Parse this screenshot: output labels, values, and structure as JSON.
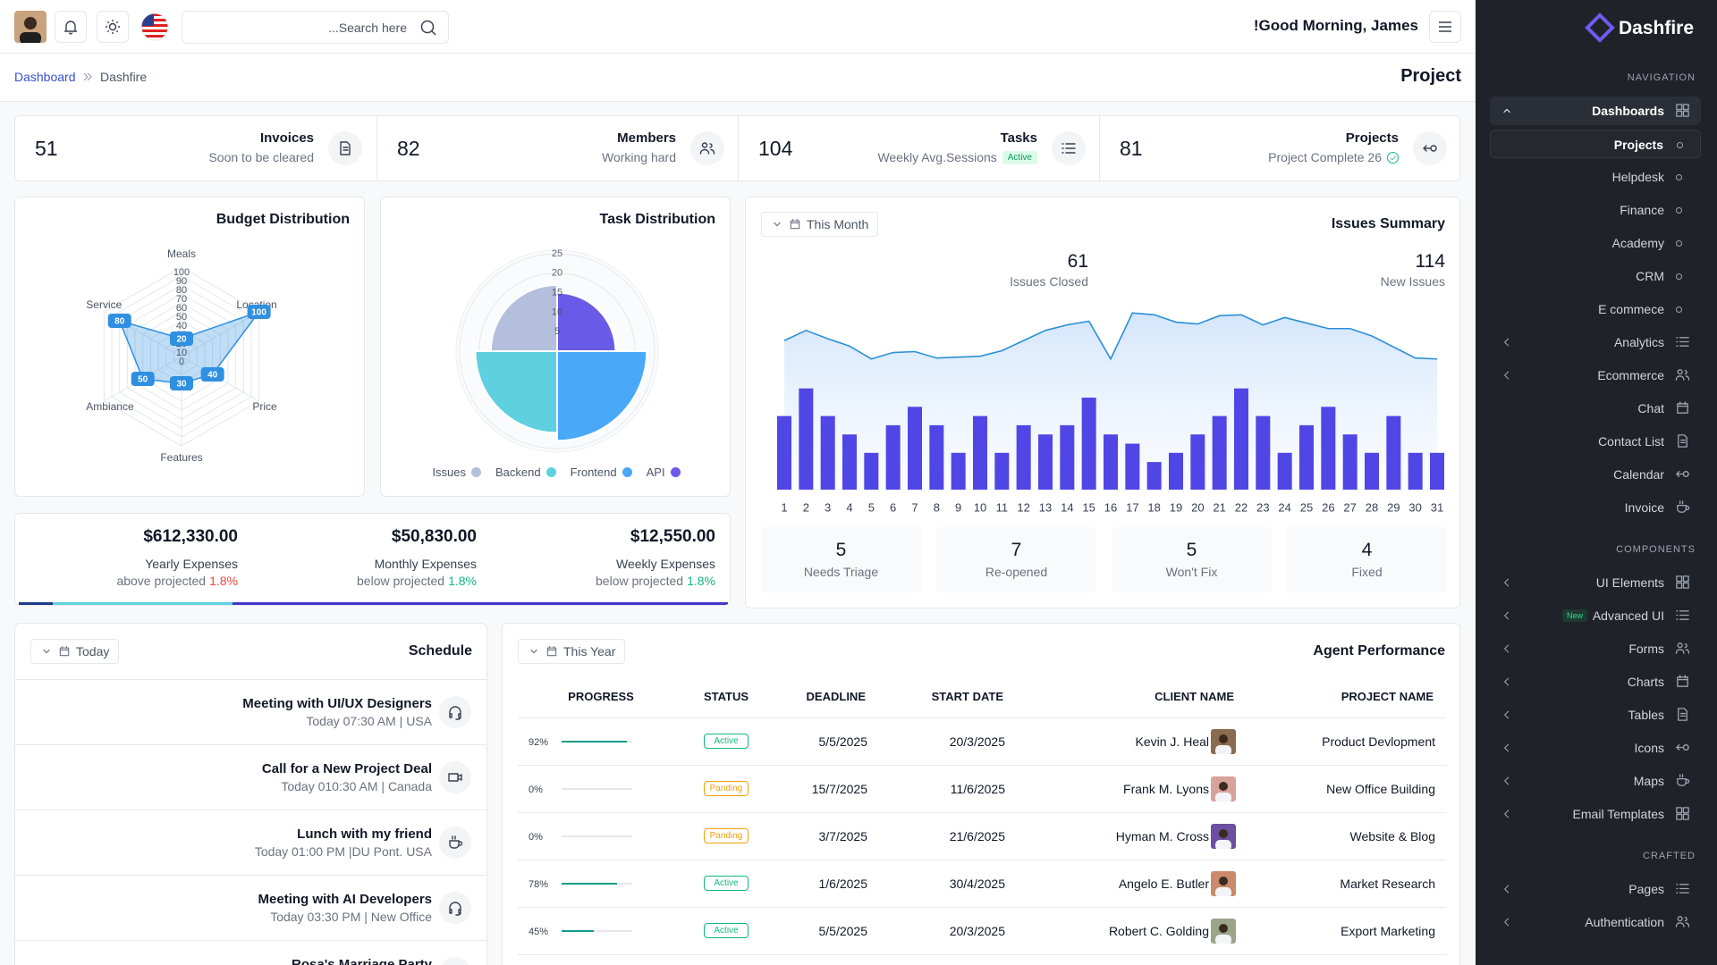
{
  "header": {
    "search_placeholder": "...Search here",
    "greeting": "!Good Morning, James"
  },
  "breadcrumb": {
    "items": [
      "Dashboard",
      "Dashfire"
    ],
    "page_title": "Project"
  },
  "stats": [
    {
      "value": 51,
      "label": "Invoices",
      "sub": "Soon to be cleared"
    },
    {
      "value": 82,
      "label": "Members",
      "sub": "Working hard"
    },
    {
      "value": 104,
      "label": "Tasks",
      "sub": "Weekly Avg.Sessions",
      "badge": "Active"
    },
    {
      "value": 81,
      "label": "Projects",
      "sub": "Project Complete 26"
    }
  ],
  "chart_data": [
    {
      "type": "radar",
      "title": "Budget Distribution",
      "categories": [
        "Meals",
        "Location",
        "Price",
        "Features",
        "Ambiance",
        "Service"
      ],
      "values": [
        20,
        100,
        40,
        30,
        50,
        80
      ],
      "ylim": [
        0,
        100
      ],
      "yticks": [
        0,
        10,
        20,
        30,
        40,
        50,
        60,
        70,
        80,
        90,
        100
      ],
      "color": "#2f8fe0"
    },
    {
      "type": "polar",
      "title": "Task Distribution",
      "categories": [
        "Issues",
        "Backend",
        "Frontend",
        "API"
      ],
      "values": [
        17,
        21,
        23,
        15
      ],
      "colors": [
        "#b3bfdc",
        "#5fd0e0",
        "#4aa8f8",
        "#6a5ae8"
      ],
      "ylim": [
        0,
        25
      ],
      "yticks": [
        5,
        10,
        15,
        20,
        25
      ]
    },
    {
      "type": "combo",
      "title": "Issues Summary",
      "x": [
        1,
        2,
        3,
        4,
        5,
        6,
        7,
        8,
        9,
        10,
        11,
        12,
        13,
        14,
        15,
        16,
        17,
        18,
        19,
        20,
        21,
        22,
        23,
        24,
        25,
        26,
        27,
        28,
        29,
        30,
        31
      ],
      "series": [
        {
          "type": "area",
          "color": "#2b8fd6",
          "values": [
            16.2,
            17.3,
            16.4,
            15.6,
            14.2,
            14.9,
            15.0,
            14.3,
            14.4,
            14.5,
            15.1,
            16.2,
            17.3,
            17.9,
            18.3,
            14.2,
            19.2,
            19.0,
            18.2,
            18.0,
            18.9,
            19.0,
            17.9,
            18.7,
            18.1,
            17.5,
            17.5,
            16.7,
            15.5,
            14.3,
            14.2
          ]
        },
        {
          "type": "bar",
          "color": "#5046e5",
          "values": [
            8,
            11,
            8,
            6,
            4,
            7,
            9,
            7,
            4,
            8,
            4,
            7,
            6,
            7,
            10,
            6,
            5,
            3,
            4,
            6,
            8,
            11,
            8,
            4,
            7,
            9,
            6,
            4,
            8,
            4,
            4
          ]
        }
      ],
      "ylim": [
        0,
        20
      ]
    }
  ],
  "expenses": [
    {
      "amount": "$612,330.00",
      "label": "Yearly Expenses",
      "note": "above projected",
      "change": "1.8%",
      "change_color": "#ef4444"
    },
    {
      "amount": "$50,830.00",
      "label": "Monthly Expenses",
      "note": "below projected",
      "change": "1.8%",
      "change_color": "#10b981"
    },
    {
      "amount": "$12,550.00",
      "label": "Weekly Expenses",
      "note": "below projected",
      "change": "1.8%",
      "change_color": "#10b981"
    }
  ],
  "issues_summary": {
    "filter": "This Month",
    "totals": [
      {
        "value": 61,
        "label": "Issues Closed"
      },
      {
        "value": 114,
        "label": "New Issues"
      }
    ],
    "breakdown": [
      {
        "value": 5,
        "label": "Needs Triage"
      },
      {
        "value": 7,
        "label": "Re-opened"
      },
      {
        "value": 5,
        "label": "Won't Fix"
      },
      {
        "value": 4,
        "label": "Fixed"
      }
    ]
  },
  "schedule": {
    "filter": "Today",
    "title": "Schedule",
    "items": [
      {
        "title": "Meeting with UI/UX Designers",
        "time": "Today 07:30 AM | USA"
      },
      {
        "title": "Call for a New Project Deal",
        "time": "Today 010:30 AM | Canada"
      },
      {
        "title": "Lunch with my friend",
        "time": "Today 01:00 PM |DU Pont. USA"
      },
      {
        "title": "Meeting with AI Developers",
        "time": "Today 03:30 PM | New Office"
      },
      {
        "title": "Rosa's Marriage Party"
      }
    ]
  },
  "agent_performance": {
    "filter": "This Year",
    "title": "Agent Performance",
    "columns": [
      "PROGRESS",
      "STATUS",
      "DEADLINE",
      "START DATE",
      "CLIENT NAME",
      "PROJECT NAME"
    ],
    "rows": [
      {
        "progress": {
          "value": 92,
          "label": "92%"
        },
        "status": "Active",
        "status_color": "#10b981",
        "deadline": "5/5/2025",
        "start_date": "20/3/2025",
        "client": "Kevin J. Heal",
        "project": "Product Devlopment"
      },
      {
        "progress": {
          "value": 0,
          "label": "0%"
        },
        "status": "Panding",
        "status_color": "#f59e0b",
        "deadline": "15/7/2025",
        "start_date": "11/6/2025",
        "client": "Frank M. Lyons",
        "project": "New Office Building"
      },
      {
        "progress": {
          "value": 0,
          "label": "0%"
        },
        "status": "Panding",
        "status_color": "#f59e0b",
        "deadline": "3/7/2025",
        "start_date": "21/6/2025",
        "client": "Hyman M. Cross",
        "project": "Website & Blog"
      },
      {
        "progress": {
          "value": 78,
          "label": "78%"
        },
        "status": "Active",
        "status_color": "#10b981",
        "deadline": "1/6/2025",
        "start_date": "30/4/2025",
        "client": "Angelo E. Butler",
        "project": "Market Research"
      },
      {
        "progress": {
          "value": 45,
          "label": "45%"
        },
        "status": "Active",
        "status_color": "#10b981",
        "deadline": "5/5/2025",
        "start_date": "20/3/2025",
        "client": "Robert C. Golding",
        "project": "Export Marketing"
      }
    ]
  },
  "sidebar": {
    "brand": "Dashfire",
    "sections": [
      {
        "title": "NAVIGATION",
        "items": [
          {
            "label": "Dashboards",
            "expanded": true,
            "children": [
              {
                "label": "Projects",
                "active": true
              },
              {
                "label": "Helpdesk"
              },
              {
                "label": "Finance"
              },
              {
                "label": "Academy"
              },
              {
                "label": "CRM"
              },
              {
                "label": "E commece"
              }
            ]
          },
          {
            "label": "Analytics",
            "collapsible": true
          },
          {
            "label": "Ecommerce",
            "collapsible": true
          },
          {
            "label": "Chat"
          },
          {
            "label": "Contact List"
          },
          {
            "label": "Calendar"
          },
          {
            "label": "Invoice"
          }
        ]
      },
      {
        "title": "COMPONENTS",
        "items": [
          {
            "label": "UI Elements",
            "collapsible": true
          },
          {
            "label": "Advanced UI",
            "collapsible": true,
            "badge": "New"
          },
          {
            "label": "Forms",
            "collapsible": true
          },
          {
            "label": "Charts",
            "collapsible": true
          },
          {
            "label": "Tables",
            "collapsible": true
          },
          {
            "label": "Icons",
            "collapsible": true
          },
          {
            "label": "Maps",
            "collapsible": true
          },
          {
            "label": "Email Templates",
            "collapsible": true
          }
        ]
      },
      {
        "title": "CRAFTED",
        "items": [
          {
            "label": "Pages",
            "collapsible": true
          },
          {
            "label": "Authentication",
            "collapsible": true
          }
        ]
      }
    ]
  }
}
